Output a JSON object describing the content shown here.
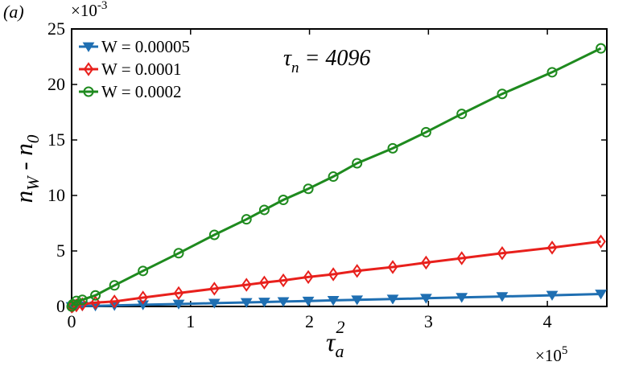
{
  "chart_data": {
    "type": "line",
    "panel_label": "(a)",
    "annotation": {
      "symbol": "τ",
      "sub": "n",
      "rest": " = 4096"
    },
    "xlabel": {
      "symbol": "τ",
      "sub": "a",
      "sup": "2"
    },
    "ylabel": {
      "a": "n",
      "a_sub": "W",
      "mid": " - n",
      "b_sub": "0"
    },
    "x_multiplier": {
      "base": "×10",
      "exp": "5"
    },
    "y_multiplier": {
      "base": "×10",
      "exp": "-3"
    },
    "xlim": [
      0,
      4.5
    ],
    "ylim": [
      0,
      25
    ],
    "x_ticks": [
      0,
      1,
      2,
      3,
      4
    ],
    "y_ticks": [
      0,
      5,
      10,
      15,
      20,
      25
    ],
    "x_tick_labels": [
      "0",
      "1",
      "2",
      "3",
      "4"
    ],
    "y_tick_labels": [
      "0",
      "5",
      "10",
      "15",
      "20",
      "25"
    ],
    "legend_position": "top-left",
    "x": [
      0,
      0.01,
      0.04,
      0.09,
      0.2,
      0.36,
      0.6,
      0.9,
      1.2,
      1.47,
      1.62,
      1.78,
      1.99,
      2.2,
      2.4,
      2.7,
      2.98,
      3.28,
      3.62,
      4.04,
      4.45
    ],
    "series": [
      {
        "name": "W = 0.00005",
        "color": "#1f6fb2",
        "marker": "triangle-down",
        "values": [
          0,
          0.0,
          0.1,
          0.05,
          0.05,
          0.09,
          0.15,
          0.22,
          0.3,
          0.36,
          0.4,
          0.44,
          0.49,
          0.55,
          0.6,
          0.67,
          0.74,
          0.82,
          0.9,
          1.01,
          1.12
        ]
      },
      {
        "name": "W = 0.0001",
        "color": "#e8201c",
        "marker": "diamond",
        "values": [
          0,
          0.05,
          0.1,
          0.2,
          0.35,
          0.45,
          0.8,
          1.2,
          1.6,
          1.95,
          2.15,
          2.35,
          2.65,
          2.9,
          3.2,
          3.55,
          3.95,
          4.35,
          4.8,
          5.3,
          5.85
        ]
      },
      {
        "name": "W = 0.0002",
        "color": "#1e8a1e",
        "marker": "circle",
        "values": [
          0,
          0.2,
          0.5,
          0.6,
          1.0,
          1.9,
          3.2,
          4.8,
          6.45,
          7.85,
          8.7,
          9.6,
          10.6,
          11.7,
          12.9,
          14.25,
          15.7,
          17.35,
          19.15,
          21.1,
          23.25
        ]
      }
    ]
  }
}
